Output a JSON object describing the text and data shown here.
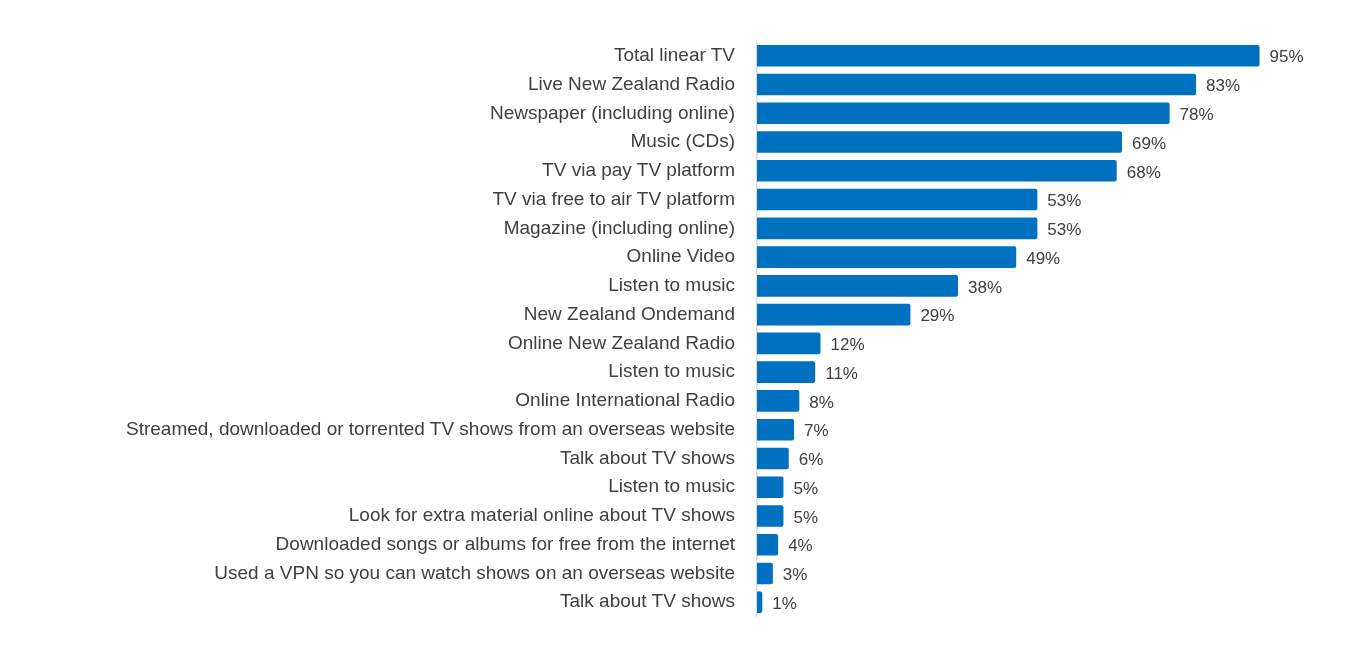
{
  "chart_data": {
    "type": "bar",
    "orientation": "horizontal",
    "categories": [
      "Total linear TV",
      "Live New Zealand Radio",
      "Newspaper (including online)",
      "Music (CDs)",
      "TV via pay TV platform",
      "TV via free to air TV platform",
      "Magazine (including online)",
      "Online Video",
      "Listen to music",
      "New Zealand Ondemand",
      "Online New Zealand Radio",
      "Listen to music",
      "Online International Radio",
      "Streamed, downloaded or torrented TV shows from an overseas website",
      "Talk about TV shows",
      "Listen to music",
      "Look for extra material online about TV shows",
      "Downloaded songs or albums for free from the internet",
      "Used a VPN so you can watch shows on an overseas website",
      "Talk about TV shows"
    ],
    "values": [
      95,
      83,
      78,
      69,
      68,
      53,
      53,
      49,
      38,
      29,
      12,
      11,
      8,
      7,
      6,
      5,
      5,
      4,
      3,
      1
    ],
    "value_labels": [
      "95%",
      "83%",
      "78%",
      "69%",
      "68%",
      "53%",
      "53%",
      "49%",
      "38%",
      "29%",
      "12%",
      "11%",
      "8%",
      "7%",
      "6%",
      "5%",
      "5%",
      "4%",
      "3%",
      "1%"
    ],
    "color": "#0070c0",
    "grid": false,
    "legend": false,
    "tick_labels": "y"
  }
}
